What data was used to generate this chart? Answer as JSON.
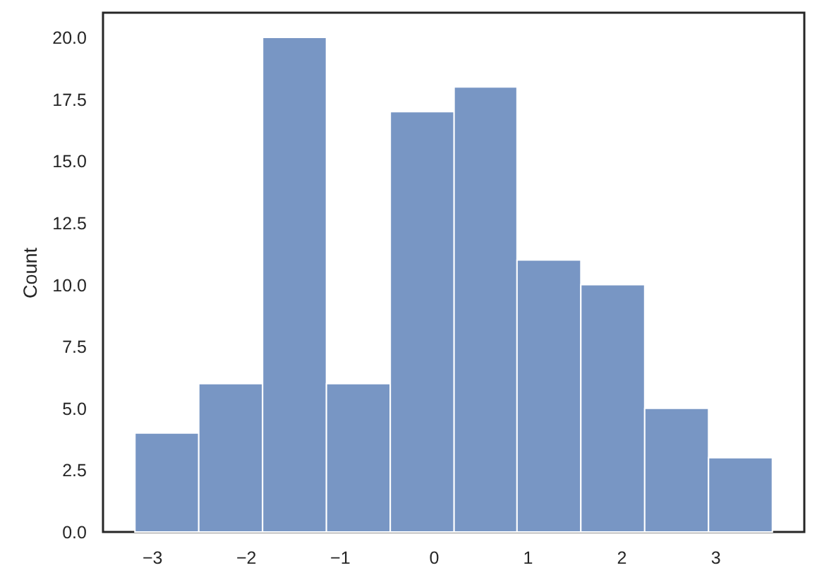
{
  "chart_data": {
    "type": "histogram",
    "ylabel": "Count",
    "bins": [
      -3.18,
      -2.5,
      -1.82,
      -1.14,
      -0.46,
      0.22,
      0.89,
      1.57,
      2.25,
      2.93,
      3.61
    ],
    "values": [
      4,
      6,
      20,
      6,
      17,
      18,
      11,
      10,
      5,
      3
    ],
    "color": "#7896c4",
    "xlim": [
      -3.52,
      3.95
    ],
    "xticks": [
      {
        "value": -3,
        "label": "−3"
      },
      {
        "value": -2,
        "label": "−2"
      },
      {
        "value": -1,
        "label": "−1"
      },
      0,
      1,
      2,
      3
    ],
    "ylim": [
      0,
      21
    ],
    "yticks": [
      {
        "value": 0,
        "label": "0.0"
      },
      {
        "value": 2.5,
        "label": "2.5"
      },
      {
        "value": 5,
        "label": "5.0"
      },
      {
        "value": 7.5,
        "label": "7.5"
      },
      {
        "value": 10,
        "label": "10.0"
      },
      {
        "value": 12.5,
        "label": "12.5"
      },
      {
        "value": 15,
        "label": "15.0"
      },
      {
        "value": 17.5,
        "label": "17.5"
      },
      {
        "value": 20,
        "label": "20.0"
      }
    ]
  }
}
